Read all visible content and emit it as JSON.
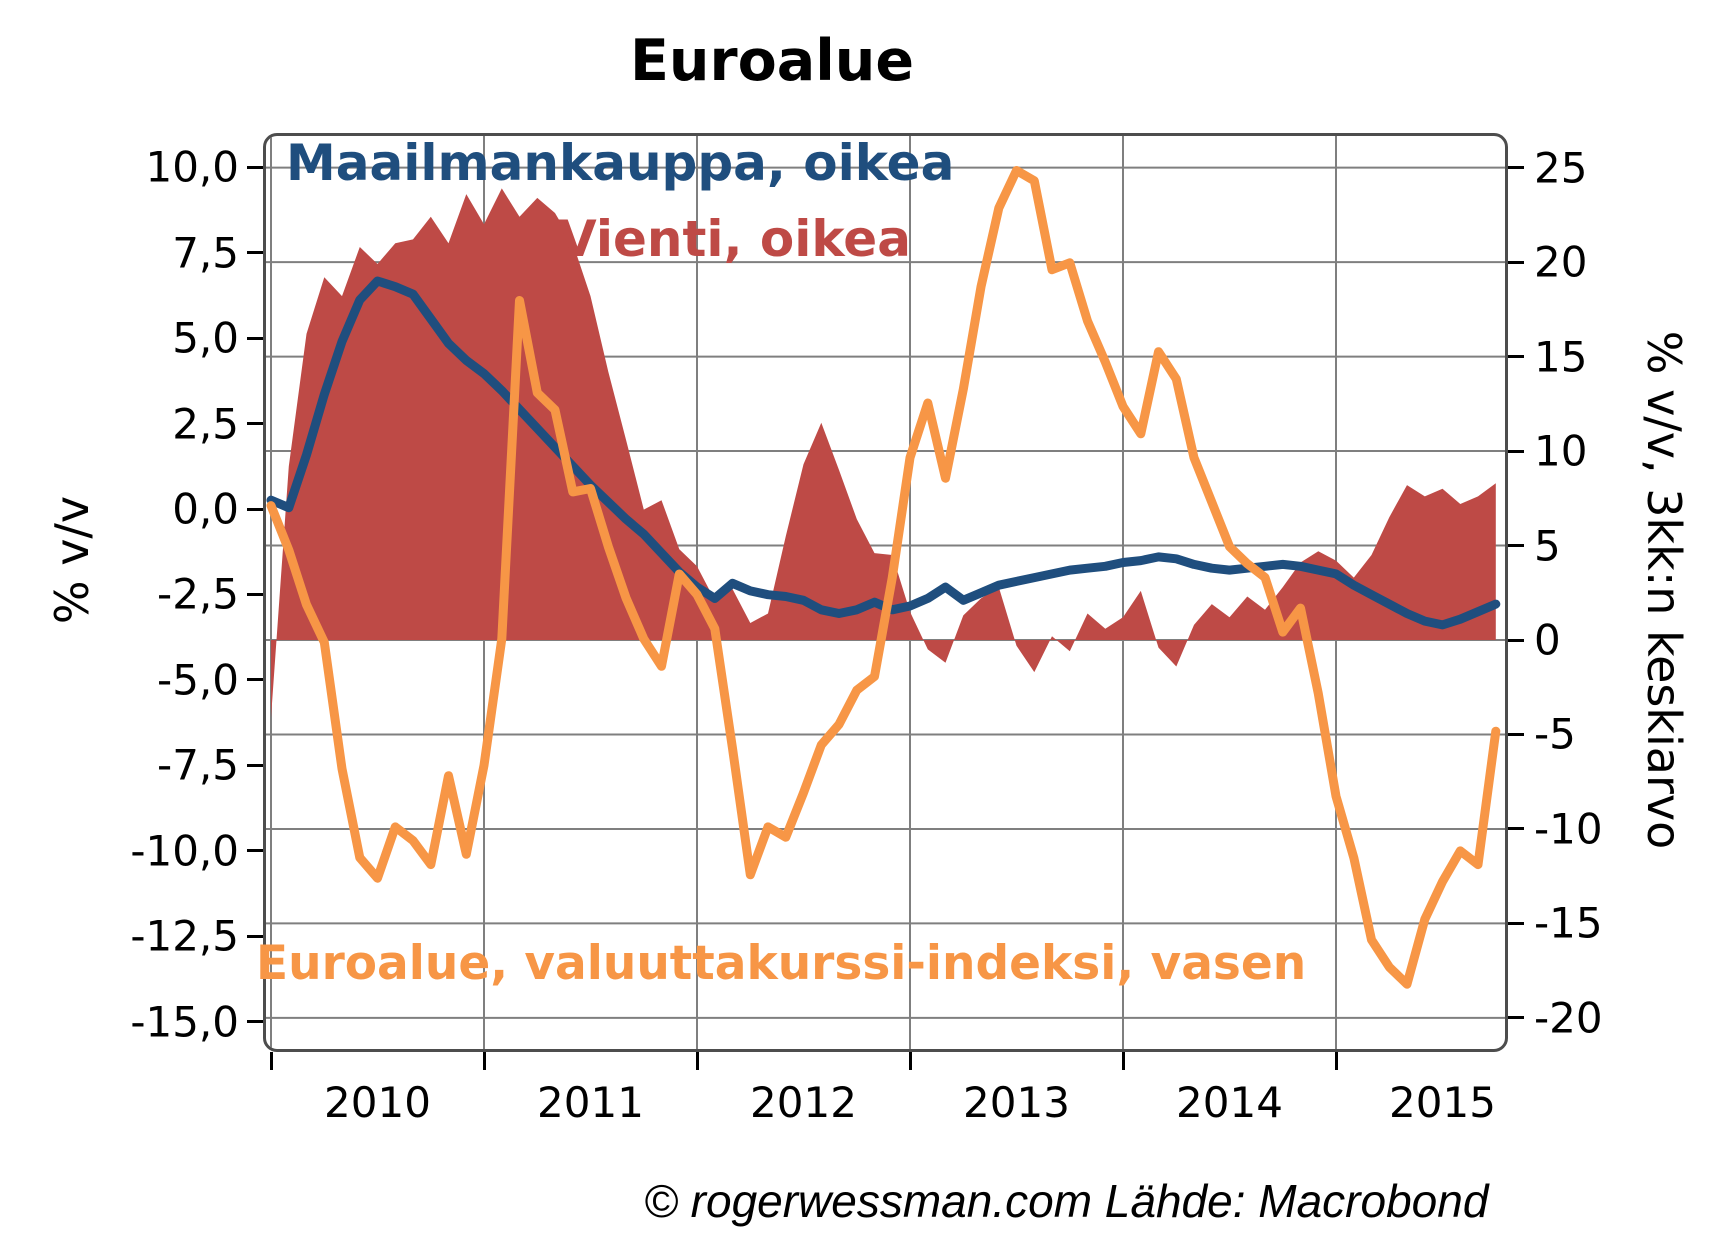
{
  "title": "Euroalue",
  "footer": "© rogerwessman.com Lähde: Macrobond",
  "colors": {
    "blue": "#1F4E7E",
    "red": "#BE4A46",
    "orange": "#F79646",
    "grid": "#7F7F7F",
    "border": "#4D4D4D",
    "text": "#000000"
  },
  "chart_data": {
    "type": "line",
    "title": "Euroalue",
    "x_start": "2010-01",
    "x_end": "2015-10",
    "x_tick_labels": [
      "2010",
      "2011",
      "2012",
      "2013",
      "2014",
      "2015"
    ],
    "grid": true,
    "left_axis": {
      "label": "% v/v",
      "min": -15,
      "max": 10,
      "tick_step": 2.5,
      "tick_labels": [
        "10,0",
        "7,5",
        "5,0",
        "2,5",
        "0,0",
        "-2,5",
        "-5,0",
        "-7,5",
        "-10,0",
        "-12,5",
        "-15,0"
      ]
    },
    "right_axis": {
      "label": "% v/v, 3kk:n keskiarvo",
      "min": -20,
      "max": 25,
      "tick_step": 5,
      "tick_labels": [
        "25",
        "20",
        "15",
        "10",
        "5",
        "0",
        "-5",
        "-10",
        "-15",
        "-20"
      ]
    },
    "series": [
      {
        "name": "Vienti, oikea",
        "axis": "right",
        "render": "area",
        "baseline": 0,
        "color": "#BE4A46",
        "values": [
          -4.1,
          9.2,
          16.2,
          19.2,
          18.2,
          20.8,
          19.9,
          21.0,
          21.2,
          22.4,
          21.0,
          23.6,
          22.0,
          23.9,
          22.4,
          23.4,
          22.6,
          21.0,
          18.2,
          14.2,
          10.6,
          6.9,
          7.4,
          4.8,
          3.9,
          2.1,
          2.7,
          0.9,
          1.4,
          5.5,
          9.3,
          11.5,
          9.0,
          6.4,
          4.6,
          4.5,
          1.5,
          -0.5,
          -1.2,
          1.3,
          2.2,
          2.8,
          -0.3,
          -1.7,
          0.2,
          -0.6,
          1.4,
          0.6,
          1.2,
          2.6,
          -0.4,
          -1.4,
          0.8,
          1.9,
          1.2,
          2.3,
          1.6,
          2.8,
          4.1,
          4.7,
          4.2,
          3.3,
          4.5,
          6.5,
          8.2,
          7.6,
          8.0,
          7.2,
          7.6,
          8.3
        ]
      },
      {
        "name": "Maailmankauppa, oikea",
        "axis": "right",
        "render": "line",
        "color": "#1F4E7E",
        "values": [
          7.4,
          7.0,
          9.8,
          13.0,
          15.8,
          18.0,
          19.0,
          18.7,
          18.3,
          17.0,
          15.7,
          14.8,
          14.1,
          13.2,
          12.2,
          11.2,
          10.2,
          9.2,
          8.2,
          7.3,
          6.4,
          5.6,
          4.6,
          3.6,
          2.8,
          2.2,
          3.0,
          2.6,
          2.4,
          2.3,
          2.1,
          1.6,
          1.4,
          1.6,
          2.0,
          1.6,
          1.8,
          2.2,
          2.8,
          2.1,
          2.5,
          2.9,
          3.1,
          3.3,
          3.5,
          3.7,
          3.8,
          3.9,
          4.1,
          4.2,
          4.4,
          4.3,
          4.0,
          3.8,
          3.7,
          3.8,
          3.9,
          4.0,
          3.9,
          3.7,
          3.5,
          2.9,
          2.4,
          1.9,
          1.4,
          1.0,
          0.8,
          1.1,
          1.5,
          1.9
        ]
      },
      {
        "name": "Euroalue, valuuttakurssi-indeksi, vasen",
        "axis": "left",
        "render": "line",
        "color": "#F79646",
        "values": [
          0.1,
          -1.2,
          -2.8,
          -3.9,
          -7.6,
          -10.2,
          -10.8,
          -9.3,
          -9.7,
          -10.4,
          -7.8,
          -10.1,
          -7.5,
          -3.8,
          6.1,
          3.4,
          2.9,
          0.5,
          0.6,
          -1.1,
          -2.6,
          -3.8,
          -4.6,
          -1.9,
          -2.5,
          -3.5,
          -7.0,
          -10.7,
          -9.3,
          -9.6,
          -8.3,
          -6.9,
          -6.3,
          -5.3,
          -4.9,
          -2.0,
          1.5,
          3.1,
          0.9,
          3.5,
          6.5,
          8.8,
          9.9,
          9.6,
          7.0,
          7.2,
          5.5,
          4.3,
          3.0,
          2.2,
          4.6,
          3.8,
          1.5,
          0.2,
          -1.1,
          -1.6,
          -2.0,
          -3.6,
          -2.9,
          -5.4,
          -8.4,
          -10.2,
          -12.6,
          -13.4,
          -13.9,
          -12.0,
          -10.9,
          -10.0,
          -10.4,
          -6.5
        ]
      }
    ],
    "legend_position": "inside-plot"
  }
}
